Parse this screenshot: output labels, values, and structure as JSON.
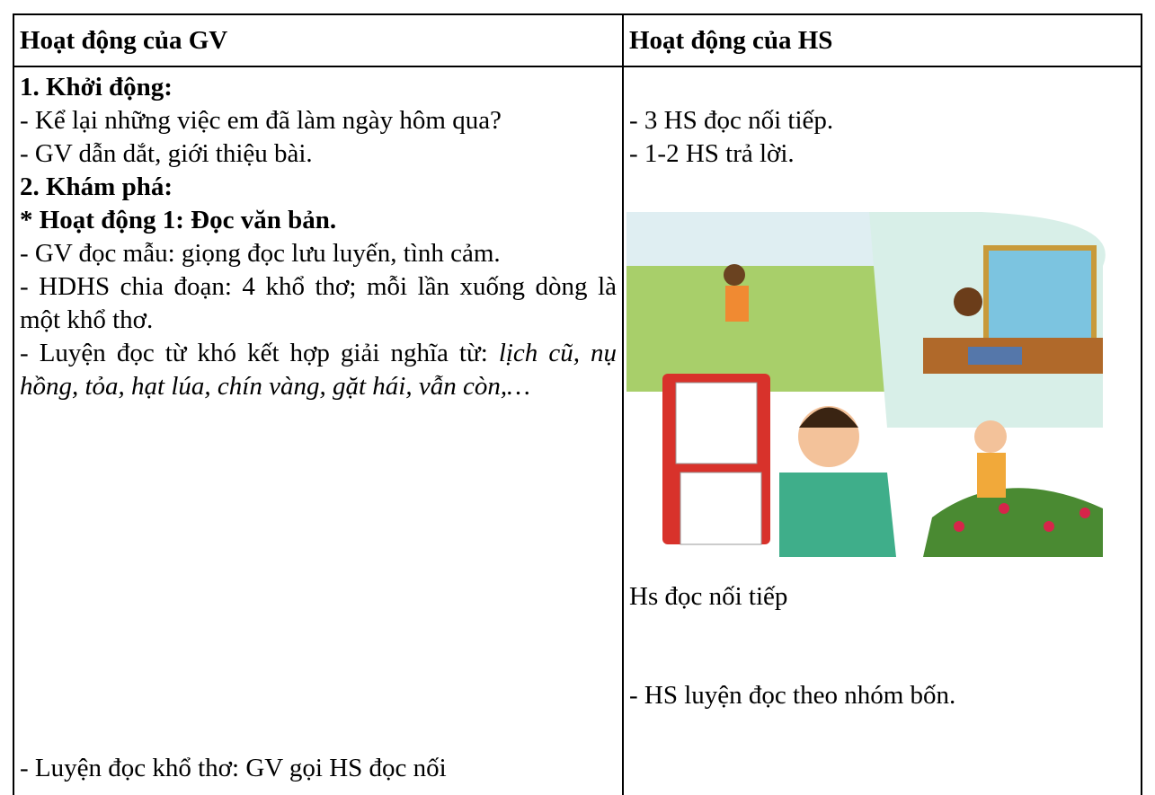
{
  "table": {
    "header": [
      "Hoạt động của GV",
      "Hoạt động của HS"
    ],
    "left": {
      "heading1": "1. Khởi động:",
      "p1": "- Kể lại những việc em đã làm ngày hôm qua?",
      "p2": "- GV dẫn dắt, giới thiệu bài.",
      "heading2": "2. Khám phá:",
      "heading3": "* Hoạt động 1: Đọc văn bản.",
      "p3": "- GV đọc mẫu: giọng đọc lưu luyến, tình cảm.",
      "p4": "- HDHS chia đoạn: 4 khổ thơ; mỗi lần xuống dòng là một khổ thơ.",
      "p5": "- Luyện đọc từ khó kết hợp giải nghĩa từ:",
      "p5_italic": "lịch cũ, nụ hồng, tỏa, hạt lúa, chín vàng, gặt hái, vẫn còn,…",
      "p6": "- Luyện đọc khổ thơ: GV gọi HS đọc nối"
    },
    "right": {
      "p1": "- 3 HS đọc nối tiếp.",
      "p2": "- 1-2 HS trả lời.",
      "caption": "Hs đọc nối tiếp",
      "p3": "- HS luyện đọc theo nhóm bốn."
    }
  }
}
